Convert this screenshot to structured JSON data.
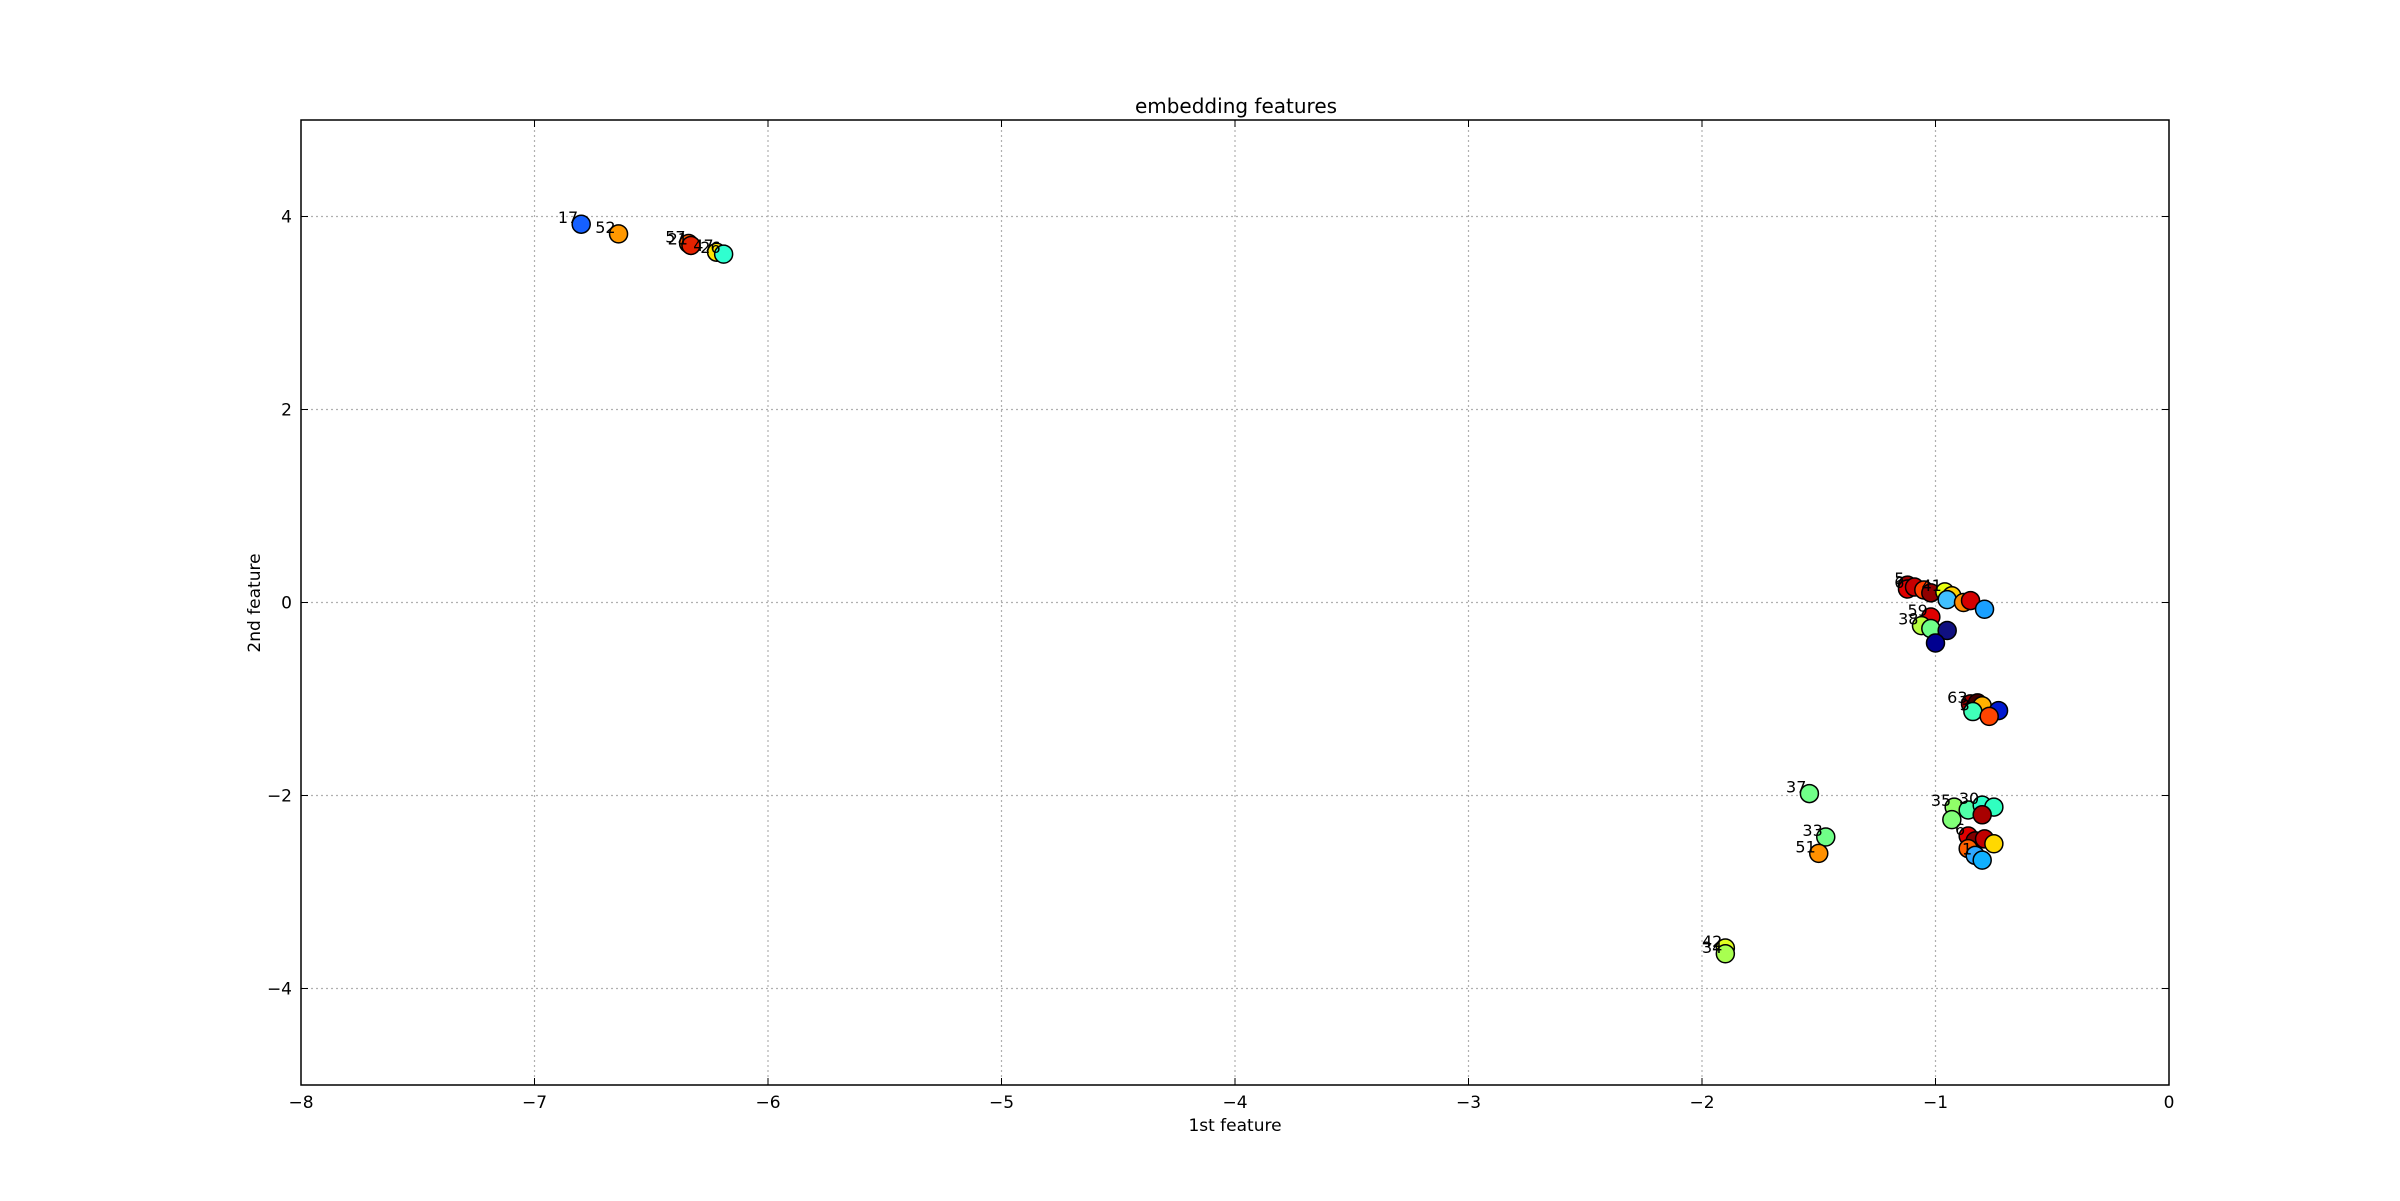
{
  "chart_data": {
    "type": "scatter",
    "title": "embedding features",
    "xlabel": "1st feature",
    "ylabel": "2nd feature",
    "xlim": [
      -8,
      0
    ],
    "ylim": [
      -5,
      5
    ],
    "xticks": [
      -8,
      -7,
      -6,
      -5,
      -4,
      -3,
      -2,
      -1,
      0
    ],
    "yticks": [
      -4,
      -2,
      0,
      2,
      4
    ],
    "xtick_labels": [
      "−8",
      "−7",
      "−6",
      "−5",
      "−4",
      "−3",
      "−2",
      "−1",
      "0"
    ],
    "ytick_labels": [
      "−4",
      "−2",
      "0",
      "2",
      "4"
    ],
    "grid": true,
    "colormap": "jet",
    "points": [
      {
        "label": "17",
        "x": -6.8,
        "y": 3.92,
        "color": "#1560ff"
      },
      {
        "label": "52",
        "x": -6.64,
        "y": 3.82,
        "color": "#ff9800"
      },
      {
        "label": "57",
        "x": -6.34,
        "y": 3.72,
        "color": "#ff5a00"
      },
      {
        "label": "21",
        "x": -6.33,
        "y": 3.7,
        "color": "#e52200"
      },
      {
        "label": "47",
        "x": -6.22,
        "y": 3.63,
        "color": "#ffe600"
      },
      {
        "label": "26",
        "x": -6.19,
        "y": 3.61,
        "color": "#30ffd0"
      },
      {
        "label": "5",
        "x": -1.12,
        "y": 0.18,
        "color": "#a00000"
      },
      {
        "label": "6",
        "x": -1.12,
        "y": 0.14,
        "color": "#e00000"
      },
      {
        "label": "",
        "x": -1.09,
        "y": 0.16,
        "color": "#c80000"
      },
      {
        "label": "",
        "x": -1.05,
        "y": 0.13,
        "color": "#ff4000"
      },
      {
        "label": "",
        "x": -1.02,
        "y": 0.1,
        "color": "#900000"
      },
      {
        "label": "41",
        "x": -0.96,
        "y": 0.11,
        "color": "#e8ff10"
      },
      {
        "label": "",
        "x": -0.93,
        "y": 0.07,
        "color": "#ffd000"
      },
      {
        "label": "",
        "x": -0.95,
        "y": 0.03,
        "color": "#40c0ff"
      },
      {
        "label": "",
        "x": -0.88,
        "y": 0.0,
        "color": "#ff8c00"
      },
      {
        "label": "",
        "x": -0.85,
        "y": 0.02,
        "color": "#d40000"
      },
      {
        "label": "",
        "x": -0.79,
        "y": -0.07,
        "color": "#1aa0ff"
      },
      {
        "label": "59",
        "x": -1.02,
        "y": -0.15,
        "color": "#e00000"
      },
      {
        "label": "38",
        "x": -1.06,
        "y": -0.24,
        "color": "#b8ff40"
      },
      {
        "label": "",
        "x": -1.02,
        "y": -0.27,
        "color": "#70ff88"
      },
      {
        "label": "",
        "x": -0.95,
        "y": -0.29,
        "color": "#101080"
      },
      {
        "label": "",
        "x": -1.0,
        "y": -0.42,
        "color": "#000090"
      },
      {
        "label": "63",
        "x": -0.85,
        "y": -1.05,
        "color": "#a00000"
      },
      {
        "label": "",
        "x": -0.82,
        "y": -1.04,
        "color": "#400000"
      },
      {
        "label": "",
        "x": -0.8,
        "y": -1.07,
        "color": "#ffb000"
      },
      {
        "label": "3",
        "x": -0.84,
        "y": -1.13,
        "color": "#40ffb8"
      },
      {
        "label": "",
        "x": -0.73,
        "y": -1.12,
        "color": "#0018d0"
      },
      {
        "label": "",
        "x": -0.77,
        "y": -1.18,
        "color": "#ff4400"
      },
      {
        "label": "37",
        "x": -1.54,
        "y": -1.98,
        "color": "#70ff88"
      },
      {
        "label": "33",
        "x": -1.47,
        "y": -2.43,
        "color": "#70ff88"
      },
      {
        "label": "51",
        "x": -1.5,
        "y": -2.6,
        "color": "#ff9000"
      },
      {
        "label": "35",
        "x": -0.92,
        "y": -2.12,
        "color": "#90ff68"
      },
      {
        "label": "",
        "x": -0.86,
        "y": -2.15,
        "color": "#50ffa8"
      },
      {
        "label": "30",
        "x": -0.8,
        "y": -2.1,
        "color": "#30ffc8"
      },
      {
        "label": "",
        "x": -0.75,
        "y": -2.12,
        "color": "#30ffc0"
      },
      {
        "label": "",
        "x": -0.8,
        "y": -2.2,
        "color": "#a80000"
      },
      {
        "label": "",
        "x": -0.93,
        "y": -2.25,
        "color": "#80ff78"
      },
      {
        "label": "6",
        "x": -0.86,
        "y": -2.42,
        "color": "#e00000"
      },
      {
        "label": "",
        "x": -0.83,
        "y": -2.47,
        "color": "#800000"
      },
      {
        "label": "",
        "x": -0.79,
        "y": -2.45,
        "color": "#c00000"
      },
      {
        "label": "",
        "x": -0.75,
        "y": -2.5,
        "color": "#ffd800"
      },
      {
        "label": "",
        "x": -0.86,
        "y": -2.55,
        "color": "#ff6000"
      },
      {
        "label": "1",
        "x": -0.83,
        "y": -2.62,
        "color": "#30a8ff"
      },
      {
        "label": "",
        "x": -0.8,
        "y": -2.67,
        "color": "#10b0ff"
      },
      {
        "label": "42",
        "x": -1.9,
        "y": -3.58,
        "color": "#e0ff20"
      },
      {
        "label": "34",
        "x": -1.9,
        "y": -3.64,
        "color": "#a8ff50"
      }
    ]
  }
}
